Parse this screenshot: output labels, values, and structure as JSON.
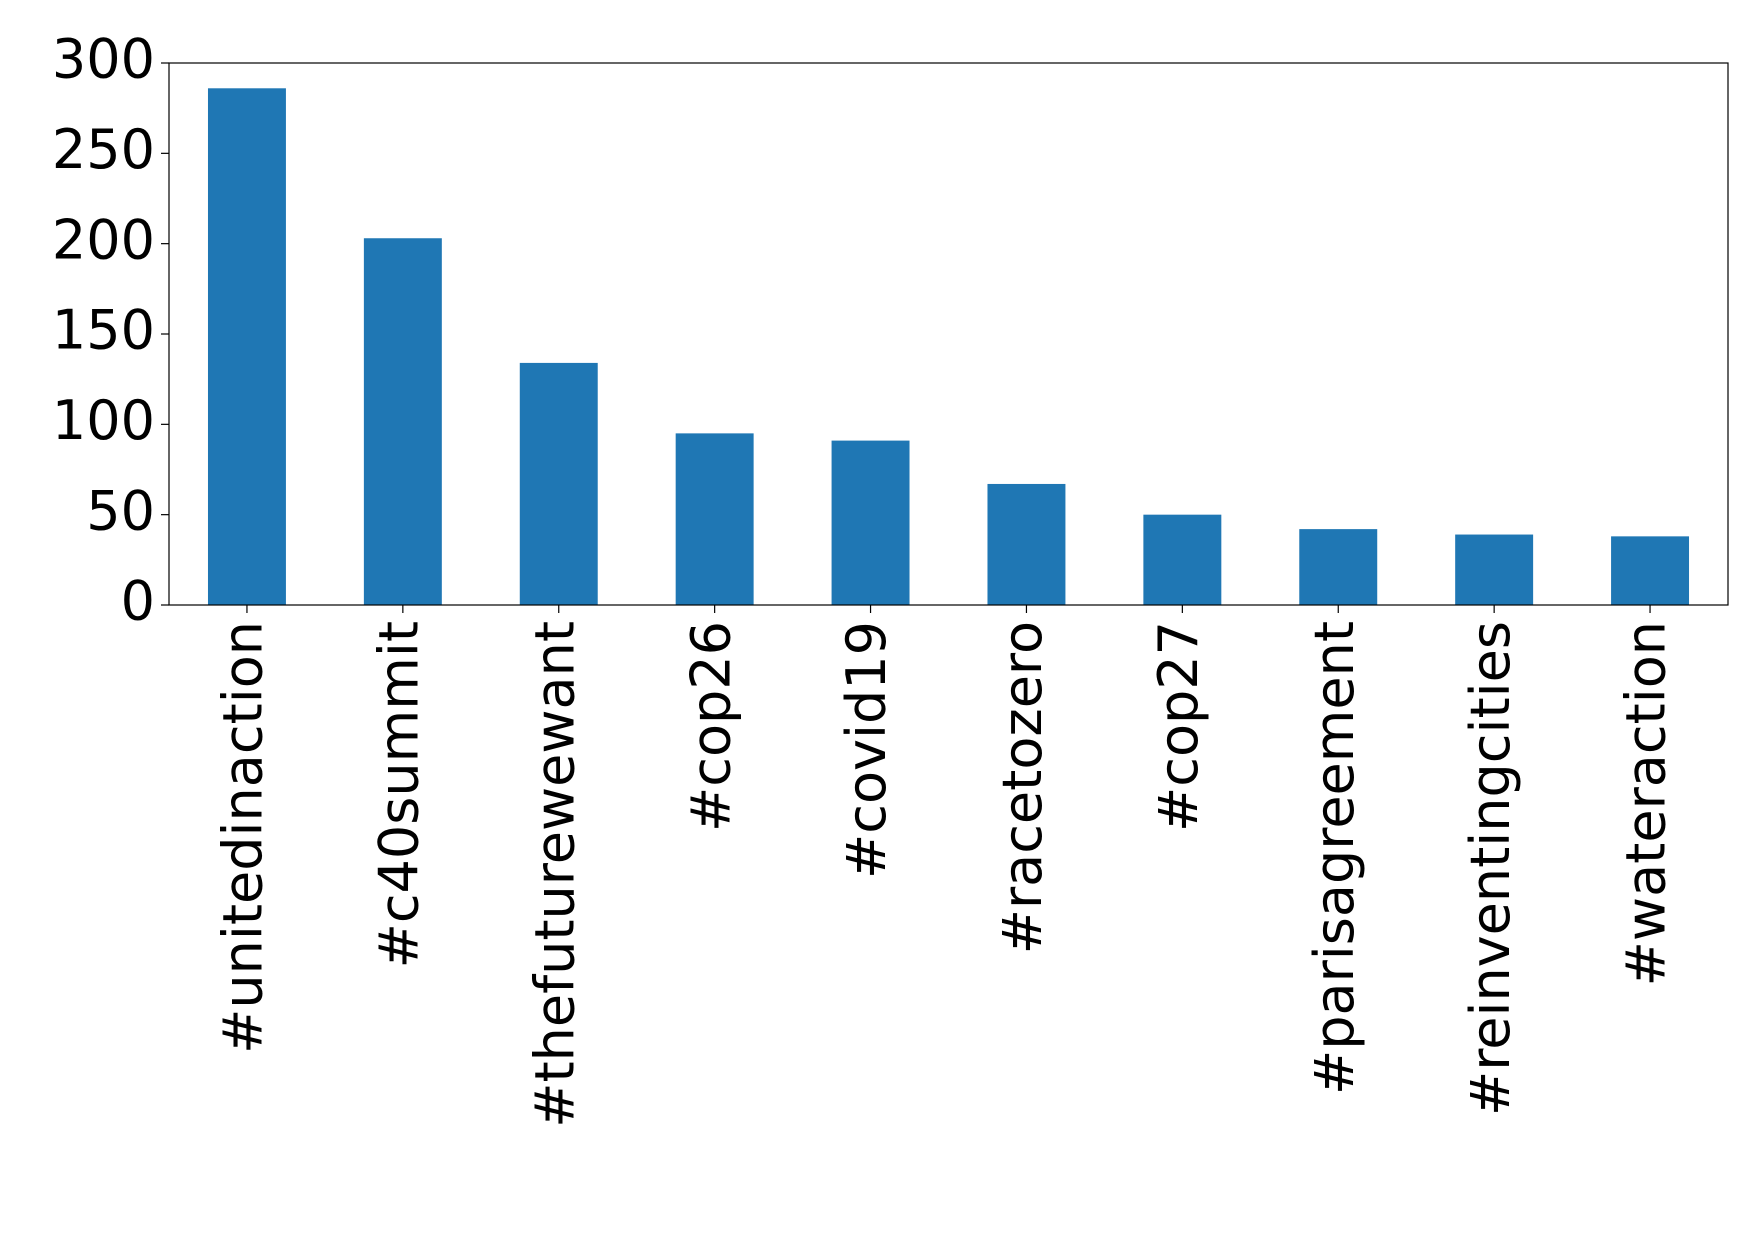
{
  "chart_data": {
    "type": "bar",
    "categories": [
      "#unitedinaction",
      "#c40summit",
      "#thefuturewewant",
      "#cop26",
      "#covid19",
      "#racetozero",
      "#cop27",
      "#parisagreement",
      "#reinventingcities",
      "#wateraction"
    ],
    "values": [
      286,
      203,
      134,
      95,
      91,
      67,
      50,
      42,
      39,
      38
    ],
    "color": "#1f77b4",
    "ylim": [
      0,
      300
    ],
    "yticks": [
      0,
      50,
      100,
      150,
      200,
      250,
      300
    ],
    "grid": false
  }
}
